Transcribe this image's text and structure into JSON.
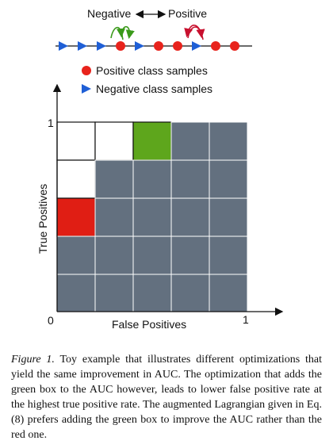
{
  "figure": {
    "top_labels": {
      "negative": "Negative",
      "positive": "Positive"
    },
    "sequence": [
      "negative",
      "negative",
      "negative",
      "positive",
      "negative",
      "positive",
      "positive",
      "negative",
      "positive",
      "positive"
    ],
    "legend": [
      {
        "label": "Positive class samples",
        "marker": "circle",
        "color": "#e8231c"
      },
      {
        "label": "Negative class samples",
        "marker": "triangle",
        "color": "#1f5fd6"
      }
    ],
    "axes": {
      "xlabel": "False Positives",
      "ylabel": "True Positives",
      "origin_label": "0",
      "x_max_label": "1",
      "y_max_label": "1"
    },
    "grid": {
      "cols": 5,
      "rows": 5,
      "cells": [
        [
          "white",
          "white",
          "green",
          "gray",
          "gray"
        ],
        [
          "white",
          "gray",
          "gray",
          "gray",
          "gray"
        ],
        [
          "red",
          "gray",
          "gray",
          "gray",
          "gray"
        ],
        [
          "gray",
          "gray",
          "gray",
          "gray",
          "gray"
        ],
        [
          "gray",
          "gray",
          "gray",
          "gray",
          "gray"
        ]
      ]
    },
    "colors": {
      "gray": "#63707f",
      "green": "#5ea61c",
      "red": "#e01e14",
      "white": "#ffffff",
      "swap_arrow_green": "#3a9a1a",
      "swap_arrow_red": "#c8102e"
    }
  },
  "caption": {
    "label": "Figure 1.",
    "text": "Toy example that illustrates different optimizations that yield the same improvement in AUC. The optimization that adds the green box to the AUC however, leads to lower false positive rate at the highest true positive rate. The augmented Lagrangian given in Eq. (8) prefers adding the green box to improve the AUC rather than the red one."
  }
}
